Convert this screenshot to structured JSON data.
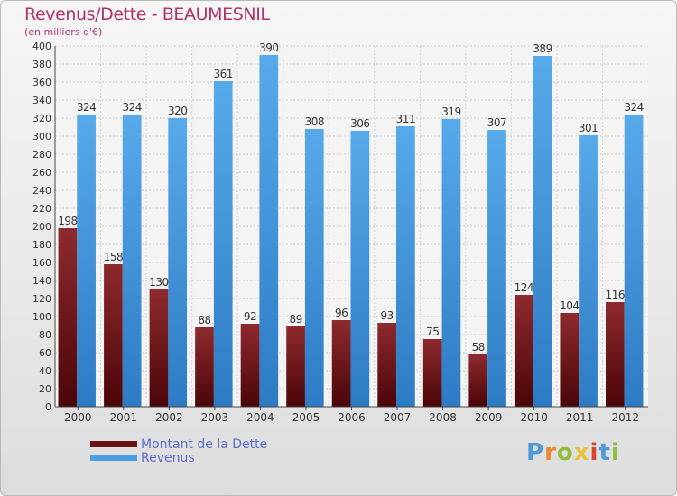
{
  "chart_data": {
    "type": "bar",
    "title": "Revenus/Dette - BEAUMESNIL",
    "subtitle": "(en milliers d'€)",
    "categories": [
      "2000",
      "2001",
      "2002",
      "2003",
      "2004",
      "2005",
      "2006",
      "2007",
      "2008",
      "2009",
      "2010",
      "2011",
      "2012"
    ],
    "series": [
      {
        "name": "Montant de la Dette",
        "values": [
          198,
          158,
          130,
          88,
          92,
          89,
          96,
          93,
          75,
          58,
          124,
          104,
          116
        ],
        "color": "#7a1a1e"
      },
      {
        "name": "Revenus",
        "values": [
          324,
          324,
          320,
          361,
          390,
          308,
          306,
          311,
          319,
          307,
          389,
          301,
          324
        ],
        "color": "#4aa0e3"
      }
    ],
    "ylim": [
      0,
      400
    ],
    "ytick_step": 20,
    "grid": true,
    "legend_position": "bottom-left"
  },
  "branding": {
    "logo_letters": [
      "P",
      "r",
      "o",
      "x",
      "i",
      "t",
      "i"
    ],
    "logo_colors": [
      "#4f9ad9",
      "#e8882f",
      "#8fbf3a",
      "#e8c23a",
      "#d9462f",
      "#4f9ad9",
      "#8fbf3a"
    ]
  }
}
